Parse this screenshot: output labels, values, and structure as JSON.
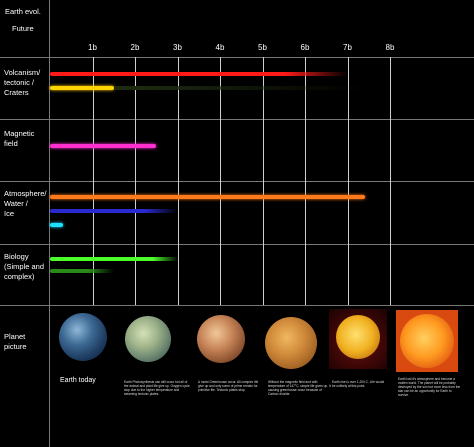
{
  "header": {
    "title": "Earth evol.",
    "subtitle": "Future",
    "ticks": [
      "1b",
      "2b",
      "3b",
      "4b",
      "5b",
      "6b",
      "7b",
      "8b"
    ]
  },
  "rows": {
    "volcanism": {
      "label_lines": [
        "Volcanism/",
        "tectonic /",
        "Craters"
      ]
    },
    "magnetic": {
      "label_lines": [
        "Magnetic",
        "field"
      ]
    },
    "atmosphere": {
      "label_lines": [
        "Atmosphere/",
        "Water /",
        "Ice"
      ]
    },
    "biology": {
      "label_lines": [
        "Biology",
        "(Simple and",
        "complex)"
      ]
    },
    "planet": {
      "label_lines": [
        "Planet",
        "picture"
      ]
    }
  },
  "bars": [
    {
      "name": "volcanism-bar-red",
      "color": "#ff1a1a",
      "start": 0,
      "end": 7.0,
      "fade_from": 5.5
    },
    {
      "name": "tectonic-bar-yellow",
      "color": "#ffd400",
      "start": 0,
      "end": 1.5
    },
    {
      "name": "tectonic-bar-dark",
      "color": "#1e2a10",
      "start": 1.5,
      "end": 7.4,
      "fade_from": 2.0
    },
    {
      "name": "magnetic-field-bar",
      "color": "#ff2fd0",
      "start": 0,
      "end": 2.5
    },
    {
      "name": "atmosphere-bar-orange",
      "color": "#ff7a1a",
      "start": 0,
      "end": 7.4
    },
    {
      "name": "water-bar-blue",
      "color": "#2a2ad0",
      "start": 0,
      "end": 3.0,
      "fade_from": 2.2
    },
    {
      "name": "ice-bar-cyan",
      "color": "#1ee0ff",
      "start": 0,
      "end": 0.3
    },
    {
      "name": "biology-bar-green",
      "color": "#4dff2a",
      "start": 0,
      "end": 3.0,
      "fade_from": 2.4
    },
    {
      "name": "biology-bar-dark-green",
      "color": "#2a8a1a",
      "start": 0,
      "end": 1.5,
      "fade_from": 0.9
    }
  ],
  "planets": [
    {
      "name": "earth-today",
      "caption": "Earth today"
    },
    {
      "name": "earth-1b",
      "caption": "Earth Photosynthesis can still occur but all of the animal and plant life give up. Oxygen cycle stop due to the higher temperature and steaming tectonic plates."
    },
    {
      "name": "earth-3b",
      "caption": "A moist Greenhouse occur. All complex life give up and only some of prime remain for primitive life. Tectonic plates stop."
    },
    {
      "name": "earth-5b",
      "caption": "Without the magnetic field and with temperature of 147°C, simple life gives up. It causing greenhouse occur because of Carbon dioxide."
    },
    {
      "name": "earth-7b",
      "caption": "Earth rise is over 1,200 C. Life would be unlikely at this point."
    },
    {
      "name": "earth-8b",
      "caption": "Earth lost it's atmosphere and become a molten world. The planet will be probably destroyed by the sun but more less from the star can be an opportunity for Earth to survive."
    }
  ]
}
